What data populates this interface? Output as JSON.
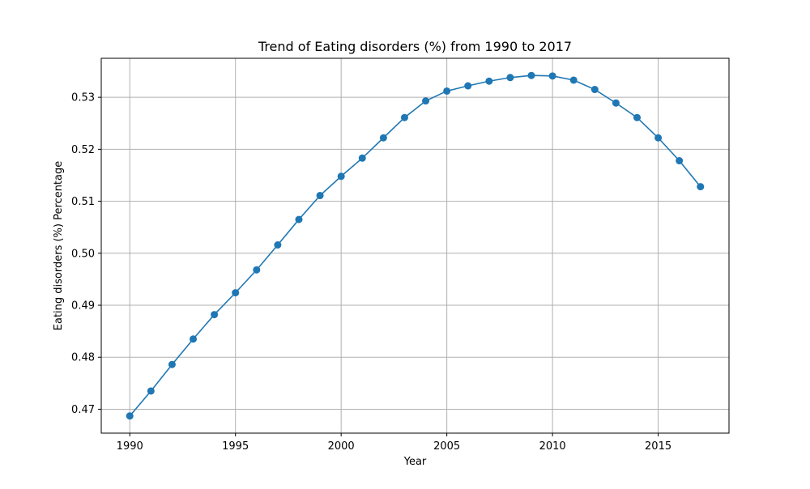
{
  "chart_data": {
    "type": "line",
    "title": "Trend of Eating disorders (%) from 1990 to 2017",
    "xlabel": "Year",
    "ylabel": "Eating disorders (%) Percentage",
    "xlim": [
      1988.65,
      2018.35
    ],
    "ylim": [
      0.4654,
      0.5375
    ],
    "xticks": [
      1990,
      1995,
      2000,
      2005,
      2010,
      2015
    ],
    "yticks": [
      0.47,
      0.48,
      0.49,
      0.5,
      0.51,
      0.52,
      0.53
    ],
    "ytick_labels": [
      "0.47",
      "0.48",
      "0.49",
      "0.50",
      "0.51",
      "0.52",
      "0.53"
    ],
    "grid": true,
    "line_color": "#1f77b4",
    "marker": "circle",
    "series": [
      {
        "x": [
          1990,
          1991,
          1992,
          1993,
          1994,
          1995,
          1996,
          1997,
          1998,
          1999,
          2000,
          2001,
          2002,
          2003,
          2004,
          2005,
          2006,
          2007,
          2008,
          2009,
          2010,
          2011,
          2012,
          2013,
          2014,
          2015,
          2016,
          2017
        ],
        "values": [
          0.4687,
          0.4735,
          0.4786,
          0.4835,
          0.4882,
          0.4924,
          0.4968,
          0.5016,
          0.5065,
          0.5111,
          0.5148,
          0.5183,
          0.5222,
          0.5261,
          0.5293,
          0.5312,
          0.5322,
          0.5331,
          0.5338,
          0.5342,
          0.5341,
          0.5333,
          0.5315,
          0.5289,
          0.5261,
          0.5222,
          0.5178,
          0.5128
        ]
      }
    ]
  }
}
